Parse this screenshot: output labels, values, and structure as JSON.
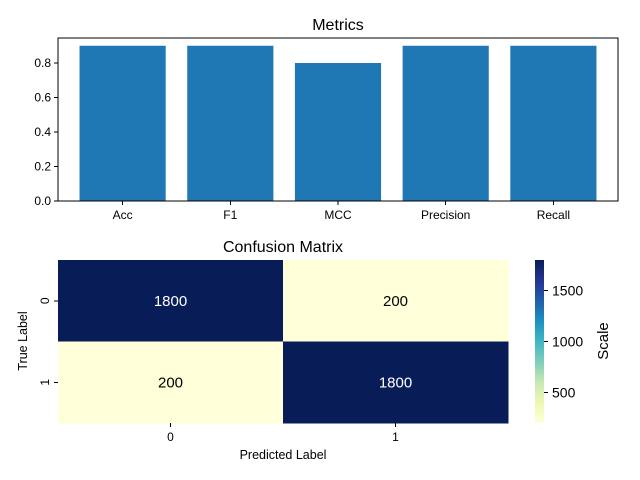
{
  "chart_data": [
    {
      "type": "bar",
      "title": "Metrics",
      "xlabel": "",
      "ylabel": "",
      "categories": [
        "Acc",
        "F1",
        "MCC",
        "Precision",
        "Recall"
      ],
      "values": [
        0.9,
        0.9,
        0.8,
        0.9,
        0.9
      ],
      "ylim": [
        0,
        0.945
      ],
      "yticks": [
        "0.0",
        "0.2",
        "0.4",
        "0.6",
        "0.8"
      ],
      "bar_color": "#1f77b4",
      "grid": false
    },
    {
      "type": "heatmap",
      "title": "Confusion Matrix",
      "xlabel": "Predicted Label",
      "ylabel": "True Label",
      "x_categories": [
        "0",
        "1"
      ],
      "y_categories": [
        "0",
        "1"
      ],
      "matrix": [
        [
          1800,
          200
        ],
        [
          200,
          1800
        ]
      ],
      "annotations": [
        [
          "1800",
          "200"
        ],
        [
          "200",
          "1800"
        ]
      ],
      "colormap": "YlGnBu",
      "colorbar": {
        "label": "Scale",
        "ticks": [
          "500",
          "1000",
          "1500"
        ],
        "range": [
          200,
          1800
        ]
      }
    }
  ]
}
